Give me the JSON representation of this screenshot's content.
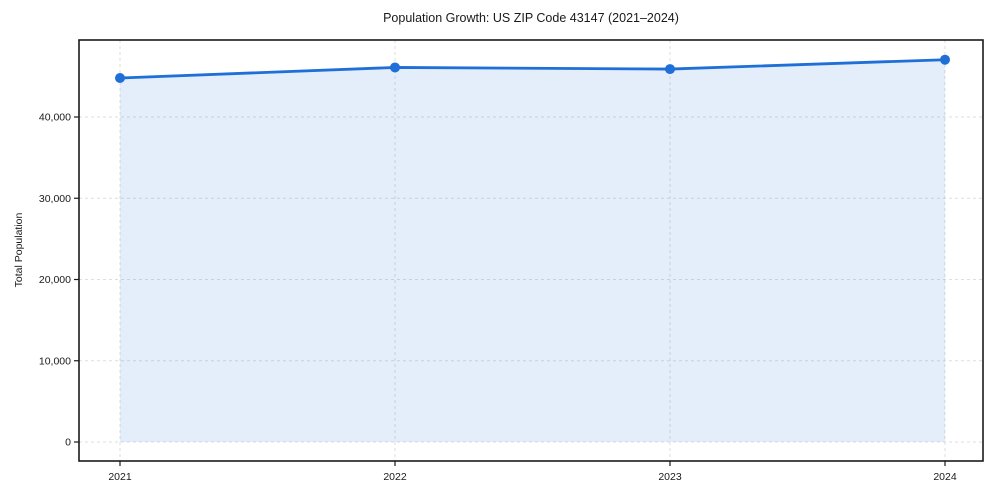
{
  "chart_data": {
    "type": "line",
    "title": "Population Growth: US ZIP Code 43147 (2021–2024)",
    "xlabel": "",
    "ylabel": "Total Population",
    "x": [
      2021,
      2022,
      2023,
      2024
    ],
    "series": [
      {
        "name": "Total Population",
        "values": [
          44800,
          46100,
          45900,
          47050
        ]
      }
    ],
    "yticks": [
      0,
      10000,
      20000,
      30000,
      40000
    ],
    "ytick_labels": [
      "0",
      "10,000",
      "20,000",
      "30,000",
      "40,000"
    ],
    "ylim": [
      -2300,
      49500
    ],
    "grid": true,
    "legend": false,
    "area_fill": true,
    "marker": "circle",
    "colors": {
      "line": "#1f6fd8",
      "fill": "rgba(31,111,216,0.12)",
      "grid": "#dedede",
      "axis": "#1a1a1a",
      "text": "#1a1a1a",
      "background": "#ffffff"
    }
  }
}
